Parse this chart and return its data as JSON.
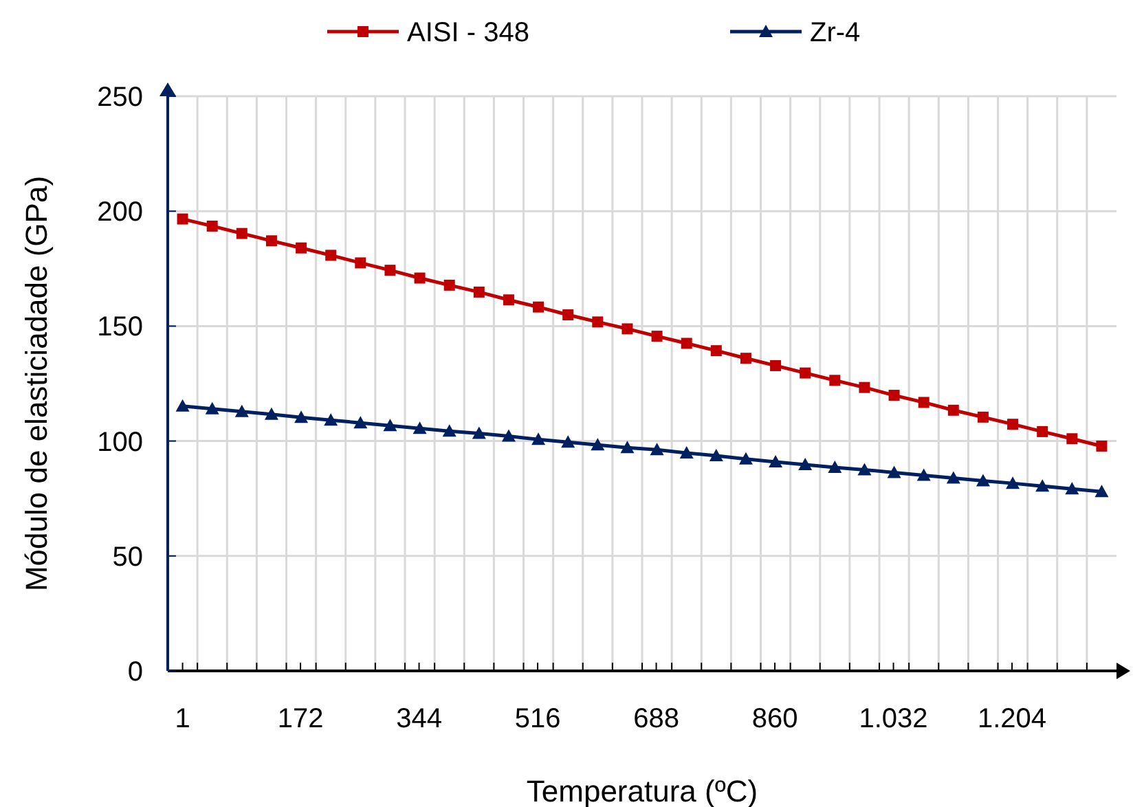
{
  "chart_data": {
    "type": "line",
    "xlabel": "Temperatura (ºC)",
    "ylabel": "Módulo de elasticiadade (GPa)",
    "x": [
      1,
      44,
      87,
      130,
      173,
      216,
      259,
      302,
      345,
      388,
      431,
      474,
      517,
      560,
      603,
      646,
      689,
      732,
      775,
      818,
      861,
      904,
      947,
      990,
      1033,
      1076,
      1119,
      1162,
      1205,
      1248,
      1291,
      1334
    ],
    "series": [
      {
        "name": "AISI - 348",
        "color": "#c00000",
        "marker": "square",
        "values": [
          196.6,
          193.5,
          190.3,
          187.1,
          184.0,
          180.8,
          177.5,
          174.3,
          170.9,
          167.8,
          164.8,
          161.4,
          158.3,
          154.9,
          151.8,
          148.8,
          145.6,
          142.5,
          139.3,
          136.0,
          132.8,
          129.6,
          126.4,
          123.3,
          119.9,
          116.8,
          113.4,
          110.4,
          107.3,
          104.1,
          101.0,
          97.8
        ]
      },
      {
        "name": "Zr-4",
        "color": "#002060",
        "marker": "triangle",
        "values": [
          115.2,
          114.0,
          112.8,
          111.6,
          110.3,
          109.1,
          107.9,
          106.7,
          105.5,
          104.3,
          103.3,
          102.1,
          100.7,
          99.5,
          98.3,
          97.1,
          96.2,
          94.8,
          93.6,
          92.2,
          90.9,
          89.7,
          88.5,
          87.5,
          86.3,
          85.1,
          83.9,
          82.7,
          81.6,
          80.4,
          79.2,
          78.0
        ]
      }
    ],
    "xlim": [
      -20.5,
      1355.5
    ],
    "xticks": [
      {
        "value": 1,
        "label": "1"
      },
      172,
      344,
      516,
      688,
      860,
      {
        "value": 1032,
        "label": "1.032"
      },
      {
        "value": 1204,
        "label": "1.204"
      },
      {
        "value": 22.5,
        "label": null
      },
      {
        "value": 65.5,
        "label": null
      },
      {
        "value": 108.5,
        "label": null
      },
      {
        "value": 151.5,
        "label": null
      },
      {
        "value": 194.5,
        "label": null
      },
      {
        "value": 237.5,
        "label": null
      },
      {
        "value": 280.5,
        "label": null
      },
      {
        "value": 323.5,
        "label": null
      },
      {
        "value": 366.5,
        "label": null
      },
      {
        "value": 409.5,
        "label": null
      },
      {
        "value": 452.5,
        "label": null
      },
      {
        "value": 495.5,
        "label": null
      },
      {
        "value": 538.5,
        "label": null
      },
      {
        "value": 581.5,
        "label": null
      },
      {
        "value": 624.5,
        "label": null
      },
      {
        "value": 667.5,
        "label": null
      },
      {
        "value": 710.5,
        "label": null
      },
      {
        "value": 753.5,
        "label": null
      },
      {
        "value": 796.5,
        "label": null
      },
      {
        "value": 839.5,
        "label": null
      },
      {
        "value": 882.5,
        "label": null
      },
      {
        "value": 925.5,
        "label": null
      },
      {
        "value": 968.5,
        "label": null
      },
      {
        "value": 1011.5,
        "label": null
      },
      {
        "value": 1054.5,
        "label": null
      },
      {
        "value": 1097.5,
        "label": null
      },
      {
        "value": 1140.5,
        "label": null
      },
      {
        "value": 1183.5,
        "label": null
      },
      {
        "value": 1226.5,
        "label": null
      },
      {
        "value": 1269.5,
        "label": null
      },
      {
        "value": 1312.5,
        "label": null
      }
    ],
    "ylim": [
      0,
      250
    ],
    "yticks": [
      0,
      50,
      100,
      150,
      200,
      250
    ],
    "grid": true,
    "legend": "top",
    "line_style": "solid"
  }
}
